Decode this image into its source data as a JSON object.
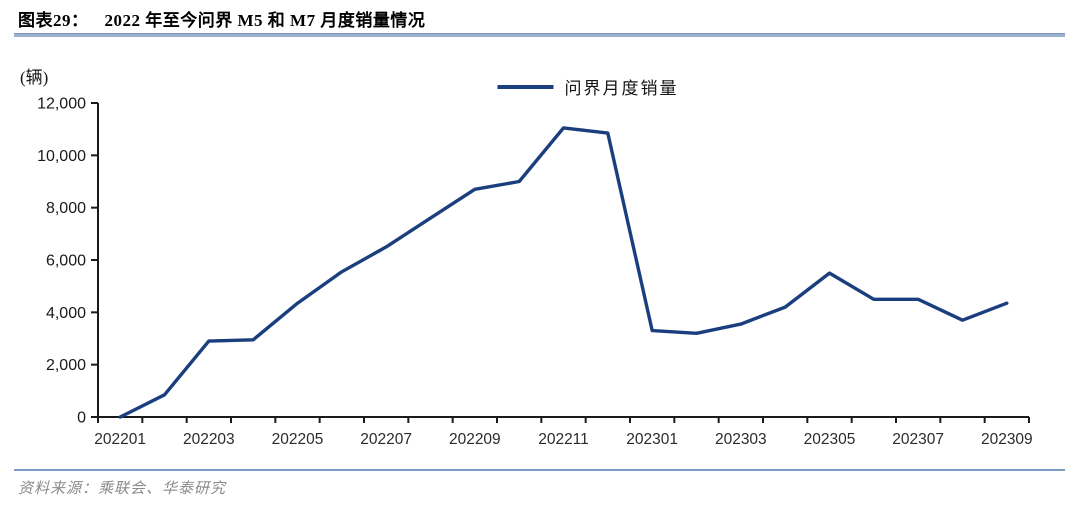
{
  "header": {
    "figure_label": "图表29：",
    "title": "2022 年至今问界 M5 和 M7 月度销量情况"
  },
  "chart": {
    "unit_label": "(辆)",
    "legend_label": "问界月度销量"
  },
  "chart_data": {
    "type": "line",
    "title": "2022 年至今问界 M5 和 M7 月度销量情况",
    "categories": [
      "202201",
      "202202",
      "202203",
      "202204",
      "202205",
      "202206",
      "202207",
      "202208",
      "202209",
      "202210",
      "202211",
      "202212",
      "202301",
      "202302",
      "202303",
      "202304",
      "202305",
      "202306",
      "202307",
      "202308",
      "202309"
    ],
    "series": [
      {
        "name": "问界月度销量",
        "values": [
          0,
          850,
          2900,
          2950,
          4350,
          5550,
          6500,
          7600,
          8700,
          9000,
          11050,
          10850,
          3300,
          3200,
          3550,
          4200,
          5500,
          4500,
          4500,
          3700,
          4350
        ]
      }
    ],
    "x_tick_labels": [
      "202201",
      "202203",
      "202205",
      "202207",
      "202209",
      "202211",
      "202301",
      "202303",
      "202305",
      "202307",
      "202309"
    ],
    "ylabel": "(辆)",
    "ylim": [
      0,
      12000
    ],
    "y_tick_step": 2000,
    "y_tick_labels": [
      "0",
      "2,000",
      "4,000",
      "6,000",
      "8,000",
      "10,000",
      "12,000"
    ],
    "grid": false,
    "legend_position": "top-center",
    "line_color": "#1b3f7e",
    "axis_color": "#1a1a1a"
  },
  "footer": {
    "source": "资料来源：乘联会、华泰研究"
  }
}
